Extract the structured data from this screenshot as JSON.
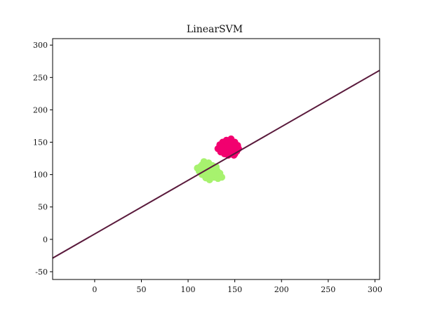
{
  "chart_data": {
    "type": "scatter",
    "title": "LinearSVM",
    "xlabel": "",
    "ylabel": "",
    "xlim": [
      -45,
      305
    ],
    "ylim": [
      -62,
      310
    ],
    "xticks": [
      0,
      50,
      100,
      150,
      200,
      250,
      300
    ],
    "yticks": [
      -50,
      0,
      50,
      100,
      150,
      200,
      250,
      300
    ],
    "grid": false,
    "colors": {
      "class_a": "#a7f26e",
      "class_b": "#f2006f",
      "boundary": "#5a1a3c"
    },
    "decision_boundary": {
      "x": [
        -45,
        305
      ],
      "y": [
        -29,
        261
      ]
    },
    "series": [
      {
        "color_key": "class_a",
        "points": [
          [
            110,
            110
          ],
          [
            112,
            105
          ],
          [
            115,
            115
          ],
          [
            115,
            100
          ],
          [
            117,
            120
          ],
          [
            118,
            108
          ],
          [
            119,
            95
          ],
          [
            120,
            112
          ],
          [
            121,
            102
          ],
          [
            122,
            118
          ],
          [
            123,
            92
          ],
          [
            124,
            108
          ],
          [
            125,
            98
          ],
          [
            126,
            114
          ],
          [
            127,
            104
          ],
          [
            128,
            96
          ],
          [
            129,
            110
          ],
          [
            130,
            100
          ],
          [
            131,
            106
          ],
          [
            132,
            94
          ],
          [
            134,
            102
          ],
          [
            122,
            105
          ],
          [
            118,
            100
          ],
          [
            126,
            100
          ],
          [
            136,
            96
          ],
          [
            130,
            112
          ],
          [
            113,
            112
          ],
          [
            120,
            98
          ]
        ]
      },
      {
        "color_key": "class_b",
        "points": [
          [
            132,
            140
          ],
          [
            134,
            146
          ],
          [
            135,
            135
          ],
          [
            137,
            150
          ],
          [
            138,
            141
          ],
          [
            139,
            132
          ],
          [
            140,
            146
          ],
          [
            141,
            153
          ],
          [
            142,
            138
          ],
          [
            143,
            130
          ],
          [
            144,
            150
          ],
          [
            145,
            142
          ],
          [
            146,
            155
          ],
          [
            147,
            135
          ],
          [
            148,
            146
          ],
          [
            149,
            130
          ],
          [
            150,
            150
          ],
          [
            151,
            140
          ],
          [
            152,
            136
          ],
          [
            153,
            145
          ],
          [
            154,
            140
          ],
          [
            141,
            142
          ],
          [
            145,
            148
          ],
          [
            138,
            136
          ],
          [
            148,
            140
          ],
          [
            143,
            145
          ],
          [
            136,
            143
          ],
          [
            150,
            132
          ]
        ]
      }
    ]
  }
}
